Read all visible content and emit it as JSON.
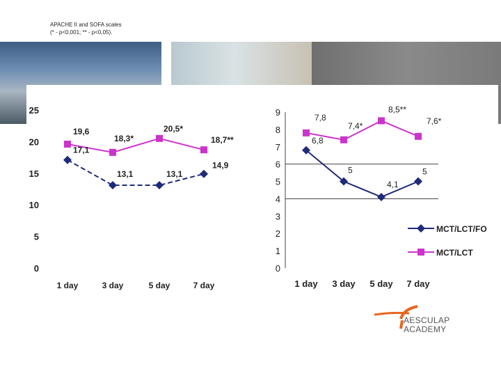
{
  "caption": {
    "line1": "APACHE II and SOFA scales",
    "line2": "(* - p<0,001; ** - p<0,05)."
  },
  "brand": {
    "line1": "AESCULAP",
    "line2": "ACADEMY",
    "accent_color": "#e8651c",
    "text_color": "#555555"
  },
  "chart_data": [
    {
      "type": "line",
      "title": "",
      "xlabel": "",
      "ylabel": "",
      "categories": [
        "1 day",
        "3 day",
        "5 day",
        "7 day"
      ],
      "ylim": [
        0,
        25
      ],
      "yticks": [
        "0",
        "5",
        "10",
        "15",
        "20",
        "25"
      ],
      "grid": false,
      "series": [
        {
          "values": [
            19.6,
            18.3,
            20.5,
            18.7
          ],
          "labels": [
            "19,6",
            "18,3*",
            "20,5*",
            "18,7**"
          ],
          "color": "#cc33cc",
          "marker": "square",
          "line": "solid"
        },
        {
          "values": [
            17.1,
            13.1,
            13.1,
            14.9
          ],
          "labels": [
            "17,1",
            "13,1",
            "13,1",
            "14,9"
          ],
          "color": "#1f2a7a",
          "marker": "diamond",
          "line": "dashed"
        }
      ]
    },
    {
      "type": "line",
      "title": "",
      "xlabel": "",
      "ylabel": "",
      "categories": [
        "1 day",
        "3 day",
        "5 day",
        "7 day"
      ],
      "ylim": [
        0,
        9
      ],
      "yticks": [
        "0",
        "1",
        "2",
        "3",
        "4",
        "5",
        "6",
        "7",
        "8",
        "9"
      ],
      "gridlines": [
        4,
        6
      ],
      "legend_position": "right",
      "series": [
        {
          "name": "MCT/LCT/FO",
          "values": [
            6.8,
            5.0,
            4.1,
            5.0
          ],
          "labels": [
            "6,8",
            "5",
            "4,1",
            "5"
          ],
          "color": "#1f2a7a",
          "marker": "diamond",
          "line": "solid"
        },
        {
          "name": "MCT/LCT",
          "values": [
            7.8,
            7.4,
            8.5,
            7.6
          ],
          "labels": [
            "7,8",
            "7,4*",
            "8,5**",
            "7,6*"
          ],
          "color": "#cc33cc",
          "marker": "square",
          "line": "solid"
        }
      ]
    }
  ]
}
